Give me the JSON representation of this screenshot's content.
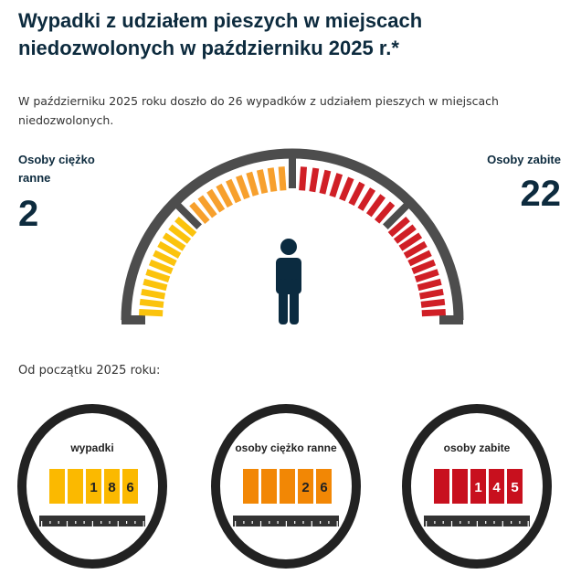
{
  "title": "Wypadki z udziałem pieszych w miejscach niedozwolonych w październiku 2025 r.*",
  "intro": "W październiku 2025 roku doszło do 26 wypadków z udziałem pieszych w miejscach niedozwolonych.",
  "left_stat": {
    "label": "Osoby ciężko ranne",
    "value": "2"
  },
  "right_stat": {
    "label": "Osoby zabite",
    "value": "22"
  },
  "since_label": "Od początku 2025 roku:",
  "counters": [
    {
      "label": "wypadki",
      "digits": [
        "",
        "",
        "1",
        "8",
        "6"
      ],
      "color": "#fbb900",
      "text_color": "#222"
    },
    {
      "label": "osoby ciężko ranne",
      "digits": [
        "",
        "",
        "",
        "2",
        "6"
      ],
      "color": "#f28705",
      "text_color": "#222"
    },
    {
      "label": "osoby zabite",
      "digits": [
        "",
        "",
        "1",
        "4",
        "5"
      ],
      "color": "#c8101e",
      "text_color": "#fff"
    }
  ],
  "gauge_colors": {
    "yellow": "#fbc30d",
    "orange": "#f7a02d",
    "red": "#d01f26",
    "frame": "#4d4d4d",
    "person": "#0b2b40"
  }
}
